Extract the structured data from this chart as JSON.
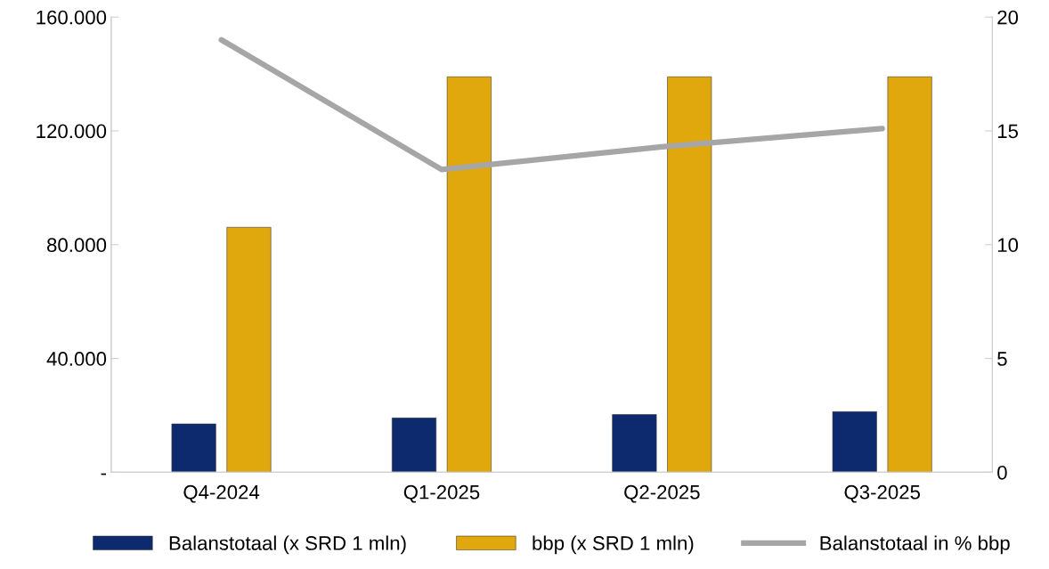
{
  "chart_data": {
    "type": "bar",
    "categories": [
      "Q4-2024",
      "Q1-2025",
      "Q2-2025",
      "Q3-2025"
    ],
    "series": [
      {
        "name": "Balanstotaal (x SRD 1 mln)",
        "color": "#0d2a6e",
        "values": [
          17000,
          19100,
          20300,
          21300
        ]
      },
      {
        "name": "bbp (x SRD 1 mln)",
        "color": "#e0a80c",
        "values": [
          86100,
          139000,
          139000,
          139000
        ]
      },
      {
        "name": "Balanstotaal in % bbp",
        "type": "line",
        "axis": "y2",
        "color": "#a6a6a6",
        "values": [
          19.0,
          13.3,
          14.3,
          15.1
        ]
      }
    ],
    "ylim": [
      0,
      160000
    ],
    "yticks": [
      {
        "value": 0,
        "label": "-"
      },
      {
        "value": 40000,
        "label": "40.000"
      },
      {
        "value": 80000,
        "label": "80.000"
      },
      {
        "value": 120000,
        "label": "120.000"
      },
      {
        "value": 160000,
        "label": "160.000"
      }
    ],
    "y2lim": [
      0,
      20
    ],
    "y2ticks": [
      0,
      5,
      10,
      15,
      20
    ],
    "grid": false,
    "legend": "bottom",
    "marker": "none",
    "line_style": "solid"
  }
}
